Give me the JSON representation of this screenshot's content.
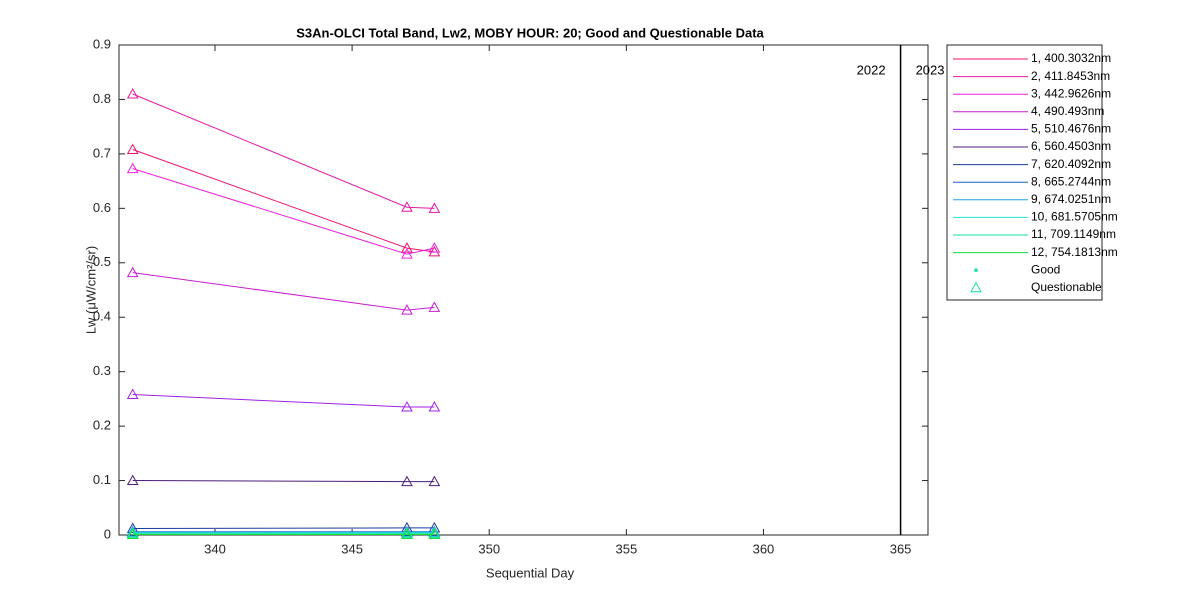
{
  "chart_data": {
    "type": "line",
    "title": "S3An-OLCI Total Band,  Lw2, MOBY HOUR: 20;  Good and Questionable Data",
    "x_label": "Sequential Day",
    "y_label": "Lw (μW/cm²/sr)",
    "x": [
      337,
      347,
      348
    ],
    "xlim": [
      336.5,
      366
    ],
    "xticks": [
      340,
      345,
      350,
      355,
      360,
      365
    ],
    "ylim": [
      0,
      0.9
    ],
    "yticks": [
      0,
      0.1,
      0.2,
      0.3,
      0.4,
      0.5,
      0.6,
      0.7,
      0.8,
      0.9
    ],
    "marker": "^",
    "year_boundary": 365,
    "year_labels": [
      "2022",
      "2023"
    ],
    "series": [
      {
        "name": "1, 400.3032nm",
        "color": "#f0106e",
        "values": [
          0.708,
          0.527,
          0.52
        ]
      },
      {
        "name": "2, 411.8453nm",
        "color": "#e619a8",
        "values": [
          0.81,
          0.602,
          0.6
        ]
      },
      {
        "name": "3, 442.9626nm",
        "color": "#f020e0",
        "values": [
          0.673,
          0.516,
          0.527
        ]
      },
      {
        "name": "4,  490.493nm",
        "color": "#c81ed2",
        "values": [
          0.482,
          0.413,
          0.418
        ]
      },
      {
        "name": "5, 510.4676nm",
        "color": "#a020e6",
        "values": [
          0.258,
          0.235,
          0.235
        ]
      },
      {
        "name": "6, 560.4503nm",
        "color": "#4b1e78",
        "values": [
          0.1,
          0.098,
          0.098
        ]
      },
      {
        "name": "7, 620.4092nm",
        "color": "#1e3ca0",
        "values": [
          0.012,
          0.013,
          0.013
        ]
      },
      {
        "name": "8, 665.2744nm",
        "color": "#1464c8",
        "values": [
          0.006,
          0.006,
          0.006
        ]
      },
      {
        "name": "9, 674.0251nm",
        "color": "#1ea0e6",
        "values": [
          0.005,
          0.005,
          0.005
        ]
      },
      {
        "name": "10, 681.5705nm",
        "color": "#1ee6d2",
        "values": [
          0.004,
          0.004,
          0.004
        ]
      },
      {
        "name": "11, 709.1149nm",
        "color": "#14e696",
        "values": [
          0.002,
          0.002,
          0.002
        ]
      },
      {
        "name": "12, 754.1813nm",
        "color": "#14dc3c",
        "values": [
          0.001,
          0.001,
          0.001
        ]
      }
    ],
    "marker_legend": [
      {
        "name": "Good",
        "color": "#14e696",
        "marker": "."
      },
      {
        "name": "Questionable",
        "color": "#14e696",
        "marker": "^"
      }
    ]
  }
}
